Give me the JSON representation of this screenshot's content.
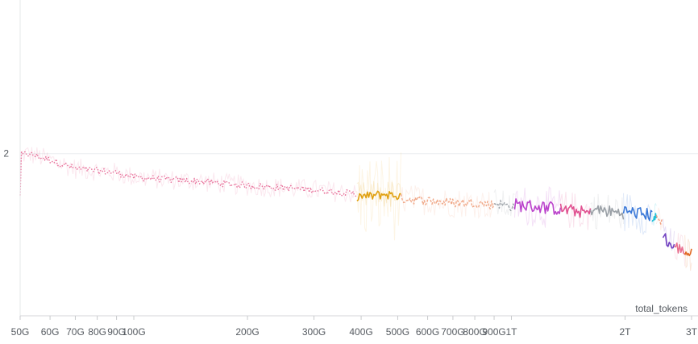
{
  "chart_data": {
    "type": "line",
    "xlabel": "total_tokens",
    "ylabel": "",
    "x_scale": "log",
    "x_ticks": [
      {
        "value": 50000000000.0,
        "label": "50G"
      },
      {
        "value": 60000000000.0,
        "label": "60G"
      },
      {
        "value": 70000000000.0,
        "label": "70G"
      },
      {
        "value": 80000000000.0,
        "label": "80G"
      },
      {
        "value": 90000000000.0,
        "label": "90G"
      },
      {
        "value": 100000000000.0,
        "label": "100G"
      },
      {
        "value": 200000000000.0,
        "label": "200G"
      },
      {
        "value": 300000000000.0,
        "label": "300G"
      },
      {
        "value": 400000000000.0,
        "label": "400G"
      },
      {
        "value": 500000000000.0,
        "label": "500G"
      },
      {
        "value": 600000000000.0,
        "label": "600G"
      },
      {
        "value": 700000000000.0,
        "label": "700G"
      },
      {
        "value": 800000000000.0,
        "label": "800G"
      },
      {
        "value": 900000000000.0,
        "label": "900G"
      },
      {
        "value": 1000000000000.0,
        "label": "1T"
      },
      {
        "value": 2000000000000.0,
        "label": "2T"
      },
      {
        "value": 3000000000000.0,
        "label": "3T"
      }
    ],
    "y_ticks": [
      {
        "value": 2,
        "label": "2"
      }
    ],
    "xlim": [
      50000000000.0,
      3000000000000.0
    ],
    "ylim": [
      1.62,
      2.36
    ],
    "grid": true,
    "legend": "none",
    "series": [
      {
        "color": "#e8709a",
        "style": "dotted",
        "noise": 0.007,
        "x": [
          50000000000.0,
          52000000000.0,
          55000000000.0,
          60000000000.0,
          65000000000.0,
          70000000000.0,
          80000000000.0,
          90000000000.0,
          100000000000.0,
          120000000000.0,
          150000000000.0,
          200000000000.0,
          250000000000.0,
          300000000000.0,
          350000000000.0,
          390000000000.0
        ],
        "y": [
          1.995,
          2.0,
          1.995,
          1.985,
          1.975,
          1.965,
          1.96,
          1.955,
          1.945,
          1.94,
          1.935,
          1.925,
          1.92,
          1.915,
          1.91,
          1.905
        ]
      },
      {
        "color": "#f0c060",
        "style": "faint",
        "noise": 0.03,
        "x": [
          390000000000.0,
          420000000000.0,
          460000000000.0,
          510000000000.0
        ],
        "y": [
          1.9,
          1.9,
          1.9,
          1.9
        ]
      },
      {
        "color": "#e0a010",
        "style": "solid",
        "noise": 0.01,
        "x": [
          390000000000.0,
          420000000000.0,
          460000000000.0,
          510000000000.0
        ],
        "y": [
          1.9,
          1.9,
          1.905,
          1.9
        ]
      },
      {
        "color": "#f0a888",
        "style": "dashed",
        "noise": 0.01,
        "x": [
          510000000000.0,
          600000000000.0,
          700000000000.0,
          800000000000.0,
          900000000000.0
        ],
        "y": [
          1.895,
          1.89,
          1.885,
          1.885,
          1.88
        ]
      },
      {
        "color": "#9aa0a6",
        "style": "dashed",
        "noise": 0.01,
        "x": [
          900000000000.0,
          950000000000.0,
          1020000000000.0
        ],
        "y": [
          1.885,
          1.88,
          1.875
        ]
      },
      {
        "color": "#bb44cc",
        "style": "solid",
        "noise": 0.014,
        "x": [
          1020000000000.0,
          1200000000000.0,
          1350000000000.0
        ],
        "y": [
          1.88,
          1.875,
          1.87
        ]
      },
      {
        "color": "#e05090",
        "style": "solid",
        "noise": 0.013,
        "x": [
          1350000000000.0,
          1500000000000.0,
          1620000000000.0
        ],
        "y": [
          1.87,
          1.865,
          1.86
        ]
      },
      {
        "color": "#9aa0a6",
        "style": "solid",
        "noise": 0.013,
        "x": [
          1620000000000.0,
          1800000000000.0,
          1980000000000.0
        ],
        "y": [
          1.87,
          1.865,
          1.86
        ]
      },
      {
        "color": "#3a78d8",
        "style": "solid",
        "noise": 0.014,
        "x": [
          1980000000000.0,
          2200000000000.0,
          2360000000000.0
        ],
        "y": [
          1.865,
          1.86,
          1.855
        ]
      },
      {
        "color": "#22c0d8",
        "style": "solid",
        "noise": 0.01,
        "x": [
          2360000000000.0,
          2420000000000.0
        ],
        "y": [
          1.85,
          1.85
        ]
      },
      {
        "color": "#f0a080",
        "style": "dashed",
        "noise": 0.01,
        "x": [
          2420000000000.0,
          2520000000000.0
        ],
        "y": [
          1.85,
          1.84
        ]
      },
      {
        "color": "#7040c0",
        "style": "solid",
        "noise": 0.012,
        "x": [
          2520000000000.0,
          2600000000000.0,
          2700000000000.0
        ],
        "y": [
          1.815,
          1.79,
          1.78
        ]
      },
      {
        "color": "#e87090",
        "style": "solid",
        "noise": 0.012,
        "x": [
          2700000000000.0,
          2800000000000.0,
          2880000000000.0
        ],
        "y": [
          1.785,
          1.775,
          1.77
        ]
      },
      {
        "color": "#e06820",
        "style": "solid",
        "noise": 0.012,
        "x": [
          2880000000000.0,
          2950000000000.0,
          3000000000000.0
        ],
        "y": [
          1.77,
          1.765,
          1.765
        ]
      }
    ]
  }
}
